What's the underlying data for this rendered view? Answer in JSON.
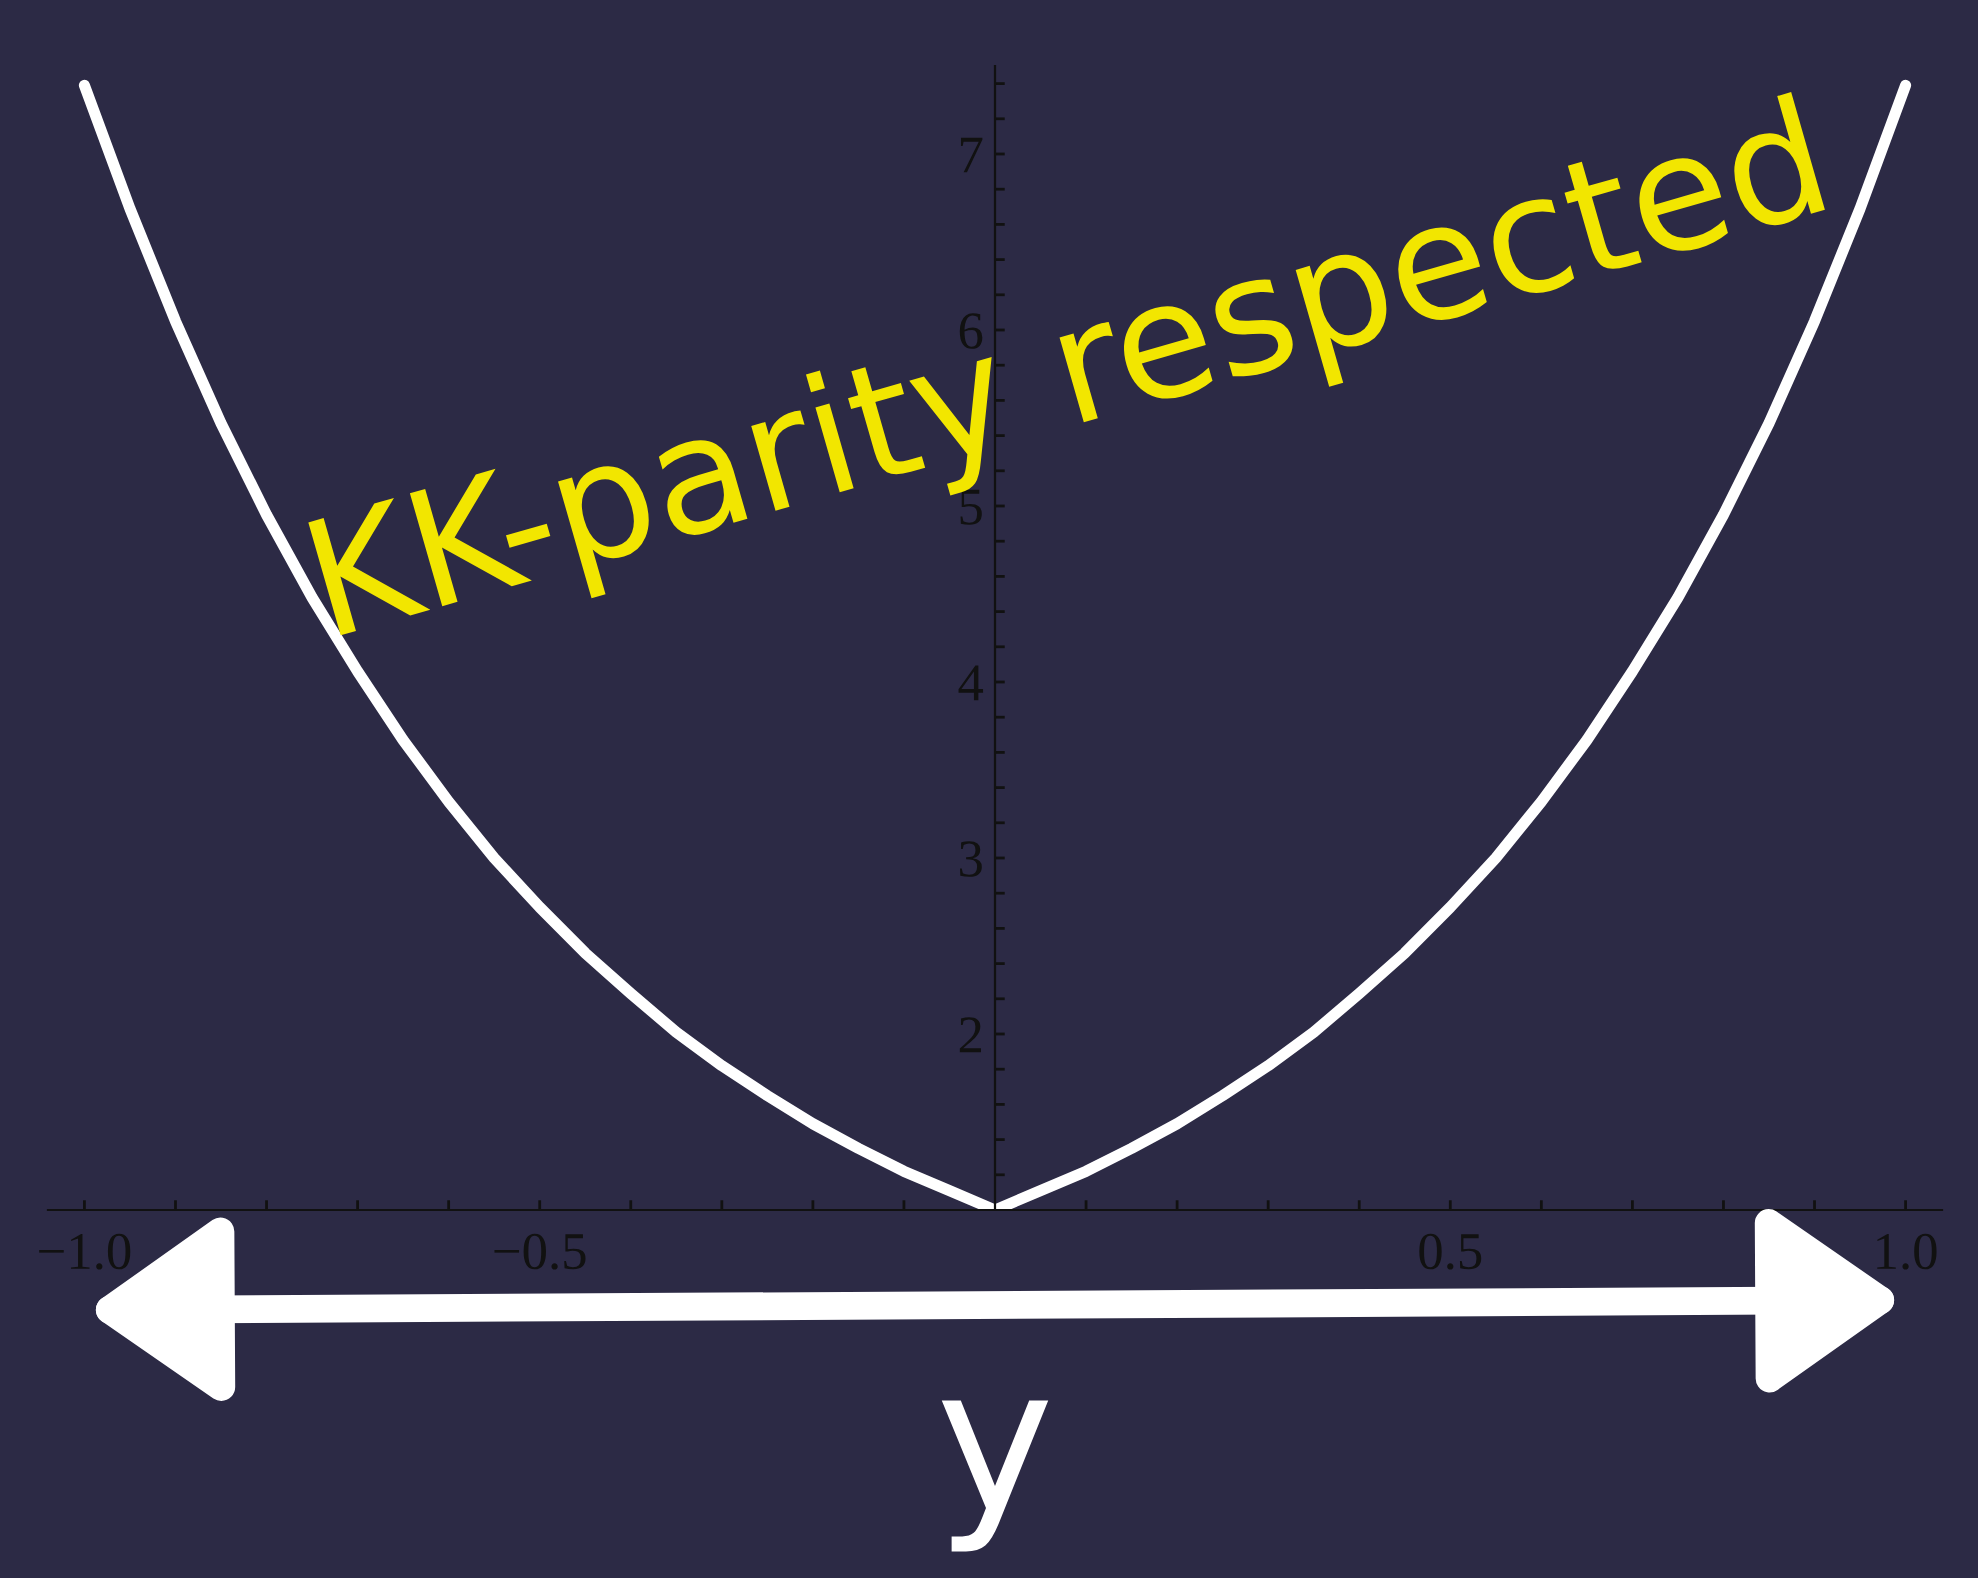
{
  "chart_data": {
    "type": "line",
    "xlabel": "y",
    "annotations": [
      "KK-parity respected"
    ],
    "x": [
      -1.0,
      -0.95,
      -0.9,
      -0.85,
      -0.8,
      -0.75,
      -0.7,
      -0.65,
      -0.6,
      -0.55,
      -0.5,
      -0.45,
      -0.4,
      -0.35,
      -0.3,
      -0.25,
      -0.2,
      -0.15,
      -0.1,
      -0.05,
      0.0,
      0.05,
      0.1,
      0.15,
      0.2,
      0.25,
      0.3,
      0.35,
      0.4,
      0.45,
      0.5,
      0.55,
      0.6,
      0.65,
      0.7,
      0.75,
      0.8,
      0.85,
      0.9,
      0.95,
      1.0
    ],
    "series": [
      {
        "color": "#ffffff",
        "values": [
          7.39,
          6.69,
          6.05,
          5.47,
          4.95,
          4.48,
          4.06,
          3.67,
          3.32,
          3.0,
          2.72,
          2.46,
          2.23,
          2.01,
          1.82,
          1.65,
          1.49,
          1.35,
          1.22,
          1.11,
          1.0,
          1.11,
          1.22,
          1.35,
          1.49,
          1.65,
          1.82,
          2.01,
          2.23,
          2.46,
          2.72,
          3.0,
          3.32,
          3.67,
          4.06,
          4.48,
          4.95,
          5.47,
          6.05,
          6.69,
          7.39
        ]
      }
    ],
    "xlim": [
      -1.04,
      1.04
    ],
    "ylim": [
      1,
      7.5
    ],
    "xticks": [
      {
        "value": -1.0,
        "label": "−1.0"
      },
      {
        "value": -0.9,
        "label": null
      },
      {
        "value": -0.8,
        "label": null
      },
      {
        "value": -0.7,
        "label": null
      },
      {
        "value": -0.6,
        "label": null
      },
      {
        "value": -0.5,
        "label": "−0.5"
      },
      {
        "value": -0.4,
        "label": null
      },
      {
        "value": -0.3,
        "label": null
      },
      {
        "value": -0.2,
        "label": null
      },
      {
        "value": -0.1,
        "label": null
      },
      {
        "value": 0.1,
        "label": null
      },
      {
        "value": 0.2,
        "label": null
      },
      {
        "value": 0.3,
        "label": null
      },
      {
        "value": 0.4,
        "label": null
      },
      {
        "value": 0.5,
        "label": "0.5"
      },
      {
        "value": 0.6,
        "label": null
      },
      {
        "value": 0.7,
        "label": null
      },
      {
        "value": 0.8,
        "label": null
      },
      {
        "value": 0.9,
        "label": null
      },
      {
        "value": 1.0,
        "label": "1.0"
      }
    ],
    "yticks": [
      {
        "value": 1.2,
        "label": null
      },
      {
        "value": 1.4,
        "label": null
      },
      {
        "value": 1.6,
        "label": null
      },
      {
        "value": 1.8,
        "label": null
      },
      2,
      {
        "value": 2.2,
        "label": null
      },
      {
        "value": 2.4,
        "label": null
      },
      {
        "value": 2.6,
        "label": null
      },
      {
        "value": 2.8,
        "label": null
      },
      3,
      {
        "value": 3.2,
        "label": null
      },
      {
        "value": 3.4,
        "label": null
      },
      {
        "value": 3.6,
        "label": null
      },
      {
        "value": 3.8,
        "label": null
      },
      4,
      {
        "value": 4.2,
        "label": null
      },
      {
        "value": 4.4,
        "label": null
      },
      {
        "value": 4.6,
        "label": null
      },
      {
        "value": 4.8,
        "label": null
      },
      5,
      {
        "value": 5.2,
        "label": null
      },
      {
        "value": 5.4,
        "label": null
      },
      {
        "value": 5.6,
        "label": null
      },
      {
        "value": 5.8,
        "label": null
      },
      6,
      {
        "value": 6.2,
        "label": null
      },
      {
        "value": 6.4,
        "label": null
      },
      {
        "value": 6.6,
        "label": null
      },
      {
        "value": 6.8,
        "label": null
      },
      7,
      {
        "value": 7.2,
        "label": null
      },
      {
        "value": 7.4,
        "label": null
      }
    ],
    "grid": false,
    "marker": "none",
    "line_style": "solid"
  }
}
